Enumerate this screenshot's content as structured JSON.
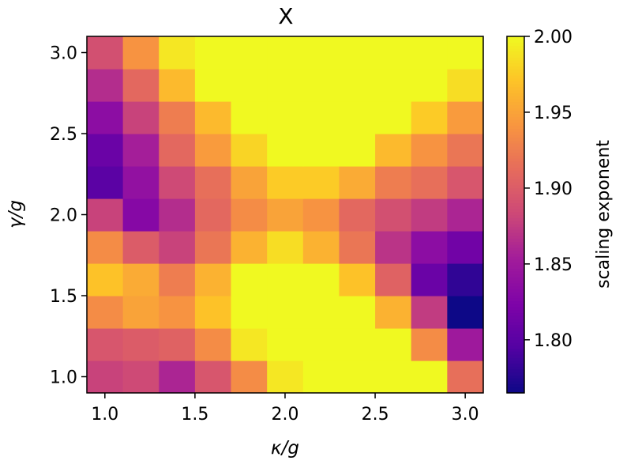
{
  "chart_data": {
    "type": "heatmap",
    "title": "X",
    "xlabel": "κ/g",
    "ylabel": "γ/g",
    "colorbar_label": "scaling exponent",
    "colormap": "plasma",
    "x_range": [
      0.9,
      3.1
    ],
    "y_range": [
      0.9,
      3.1
    ],
    "x_ticks": [
      1.0,
      1.5,
      2.0,
      2.5,
      3.0
    ],
    "x_tick_labels": [
      "1.0",
      "1.5",
      "2.0",
      "2.5",
      "3.0"
    ],
    "y_ticks": [
      1.0,
      1.5,
      2.0,
      2.5,
      3.0
    ],
    "y_tick_labels": [
      "1.0",
      "1.5",
      "2.0",
      "2.5",
      "3.0"
    ],
    "x_centers": [
      1.0,
      1.2,
      1.4,
      1.6,
      1.8,
      2.0,
      2.2,
      2.4,
      2.6,
      2.8,
      3.0
    ],
    "y_centers": [
      1.0,
      1.2,
      1.4,
      1.6,
      1.8,
      2.0,
      2.2,
      2.4,
      2.6,
      2.8,
      3.0
    ],
    "color_range": [
      1.765,
      2.0
    ],
    "colorbar_ticks": [
      1.8,
      1.85,
      1.9,
      1.95,
      2.0
    ],
    "colorbar_tick_labels": [
      "1.80",
      "1.85",
      "1.90",
      "1.95",
      "2.00"
    ],
    "values": [
      [
        1.88,
        1.885,
        1.86,
        1.895,
        1.935,
        1.99,
        2.0,
        2.0,
        2.0,
        2.0,
        1.915
      ],
      [
        1.895,
        1.9,
        1.905,
        1.935,
        1.99,
        2.0,
        2.0,
        2.0,
        2.0,
        1.935,
        1.85
      ],
      [
        1.935,
        1.95,
        1.94,
        1.97,
        2.0,
        2.0,
        2.0,
        2.0,
        1.96,
        1.875,
        1.765
      ],
      [
        1.97,
        1.955,
        1.925,
        1.96,
        2.0,
        2.0,
        2.0,
        1.97,
        1.905,
        1.81,
        1.78
      ],
      [
        1.935,
        1.9,
        1.88,
        1.92,
        1.96,
        1.985,
        1.96,
        1.92,
        1.87,
        1.835,
        1.815
      ],
      [
        1.88,
        1.83,
        1.865,
        1.91,
        1.935,
        1.95,
        1.94,
        1.91,
        1.89,
        1.875,
        1.86
      ],
      [
        1.8,
        1.84,
        1.885,
        1.915,
        1.95,
        1.975,
        1.975,
        1.955,
        1.925,
        1.915,
        1.895
      ],
      [
        1.81,
        1.855,
        1.91,
        1.945,
        1.98,
        2.0,
        2.0,
        2.0,
        1.965,
        1.94,
        1.92
      ],
      [
        1.835,
        1.88,
        1.925,
        1.965,
        2.0,
        2.0,
        2.0,
        2.0,
        2.0,
        1.975,
        1.945
      ],
      [
        1.865,
        1.91,
        1.965,
        2.0,
        2.0,
        2.0,
        2.0,
        2.0,
        2.0,
        2.0,
        1.985
      ],
      [
        1.89,
        1.94,
        1.99,
        2.0,
        2.0,
        2.0,
        2.0,
        2.0,
        2.0,
        2.0,
        2.0
      ]
    ]
  }
}
